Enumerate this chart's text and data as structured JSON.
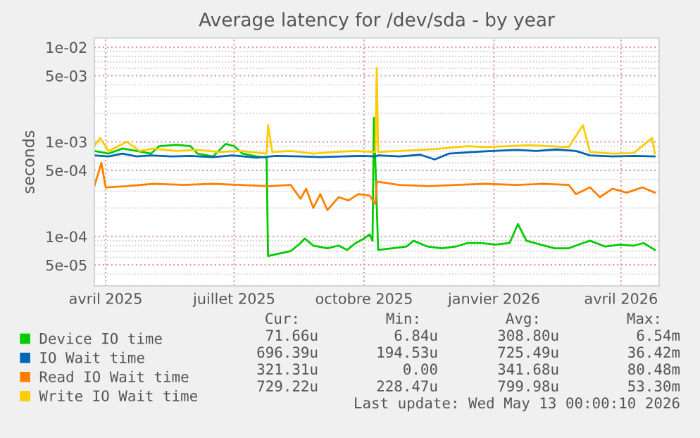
{
  "chart_data": {
    "type": "line",
    "title": "Average latency for /dev/sda - by year",
    "ylabel": "seconds",
    "log": "y",
    "xlim": [
      "2025-04-08",
      "2026-05-13"
    ],
    "xticks": [
      {
        "value": "2025-04-16",
        "label": "avril 2025"
      },
      {
        "value": "2025-07-16",
        "label": "juillet 2025"
      },
      {
        "value": "2025-10-16",
        "label": "octobre 2025"
      },
      {
        "value": "2026-01-16",
        "label": "janvier 2026"
      },
      {
        "value": "2026-04-16",
        "label": "avril 2026"
      }
    ],
    "ylim": [
      3e-05,
      0.0125
    ],
    "yticks": [
      {
        "value": 0.01,
        "label": "1e-02"
      },
      {
        "value": 0.005,
        "label": "5e-03"
      },
      {
        "value": 0.001,
        "label": "1e-03"
      },
      {
        "value": 0.0005,
        "label": "5e-04"
      },
      {
        "value": 0.0001,
        "label": "1e-04"
      },
      {
        "value": 5e-05,
        "label": "5e-05"
      }
    ],
    "grid": true,
    "legend": "bottom",
    "series": [
      {
        "name": "Device IO time",
        "color": "#00cc00",
        "x": [
          "2025-04-08",
          "2025-04-18",
          "2025-04-28",
          "2025-05-08",
          "2025-05-18",
          "2025-05-24",
          "2025-06-05",
          "2025-06-15",
          "2025-06-20",
          "2025-07-01",
          "2025-07-10",
          "2025-07-16",
          "2025-07-22",
          "2025-08-01",
          "2025-08-08",
          "2025-08-09",
          "2025-08-15",
          "2025-08-25",
          "2025-09-01",
          "2025-09-04",
          "2025-09-10",
          "2025-09-20",
          "2025-09-28",
          "2025-10-04",
          "2025-10-10",
          "2025-10-16",
          "2025-10-20",
          "2025-10-22",
          "2025-10-23",
          "2025-10-26",
          "2025-11-05",
          "2025-11-15",
          "2025-11-20",
          "2025-11-30",
          "2025-12-10",
          "2025-12-20",
          "2025-12-28",
          "2026-01-07",
          "2026-01-17",
          "2026-01-27",
          "2026-02-02",
          "2026-02-08",
          "2026-02-18",
          "2026-02-28",
          "2026-03-10",
          "2026-03-20",
          "2026-03-25",
          "2026-04-05",
          "2026-04-15",
          "2026-04-25",
          "2026-05-02",
          "2026-05-10"
        ],
        "values": [
          0.0008,
          0.00075,
          0.00085,
          0.0008,
          0.00075,
          0.0009,
          0.00093,
          0.0009,
          0.00075,
          0.0007,
          0.00095,
          0.0009,
          0.00075,
          0.0007,
          0.00068,
          6.2e-05,
          6.5e-05,
          7e-05,
          8.5e-05,
          9.5e-05,
          8e-05,
          7.5e-05,
          8e-05,
          7.2e-05,
          8.5e-05,
          9.5e-05,
          0.000105,
          9e-05,
          0.0018,
          7.2e-05,
          7.5e-05,
          7.8e-05,
          9e-05,
          7.8e-05,
          7.5e-05,
          7.8e-05,
          8.5e-05,
          8.5e-05,
          8.2e-05,
          8.5e-05,
          0.000135,
          9e-05,
          8.2e-05,
          7.5e-05,
          7.5e-05,
          8.5e-05,
          9e-05,
          7.8e-05,
          8.2e-05,
          8e-05,
          8.5e-05,
          7.2e-05
        ]
      },
      {
        "name": "IO Wait time",
        "color": "#0066b3",
        "x": [
          "2025-04-08",
          "2025-04-18",
          "2025-04-28",
          "2025-05-08",
          "2025-05-18",
          "2025-06-01",
          "2025-06-15",
          "2025-07-01",
          "2025-07-15",
          "2025-08-01",
          "2025-08-15",
          "2025-09-01",
          "2025-09-15",
          "2025-10-01",
          "2025-10-15",
          "2025-10-24",
          "2025-10-25",
          "2025-10-26",
          "2025-11-10",
          "2025-11-25",
          "2025-12-05",
          "2025-12-15",
          "2026-01-01",
          "2026-01-15",
          "2026-02-01",
          "2026-02-15",
          "2026-03-01",
          "2026-03-15",
          "2026-03-25",
          "2026-04-10",
          "2026-04-25",
          "2026-05-10"
        ],
        "values": [
          0.00072,
          0.0007,
          0.00075,
          0.0007,
          0.00072,
          0.0007,
          0.00071,
          0.00069,
          0.00072,
          0.00068,
          0.00071,
          0.0007,
          0.00069,
          0.0007,
          0.00071,
          0.0007,
          null,
          0.00072,
          0.0007,
          0.00073,
          0.00065,
          0.00075,
          0.00078,
          0.0008,
          0.00082,
          0.0008,
          0.00083,
          0.0008,
          0.00072,
          0.0007,
          0.00071,
          0.0007
        ]
      },
      {
        "name": "Read IO Wait time",
        "color": "#ff8000",
        "x": [
          "2025-04-08",
          "2025-04-13",
          "2025-04-16",
          "2025-05-01",
          "2025-05-20",
          "2025-06-10",
          "2025-07-01",
          "2025-07-20",
          "2025-08-10",
          "2025-08-25",
          "2025-09-01",
          "2025-09-05",
          "2025-09-10",
          "2025-09-15",
          "2025-09-20",
          "2025-09-28",
          "2025-10-05",
          "2025-10-12",
          "2025-10-20",
          "2025-10-24",
          "2025-10-25",
          "2025-11-10",
          "2025-12-01",
          "2025-12-20",
          "2026-01-10",
          "2026-02-01",
          "2026-02-20",
          "2026-03-10",
          "2026-03-15",
          "2026-03-25",
          "2026-04-01",
          "2026-04-10",
          "2026-04-20",
          "2026-05-01",
          "2026-05-10"
        ],
        "values": [
          0.00034,
          0.0006,
          0.00033,
          0.00034,
          0.00036,
          0.00035,
          0.00036,
          0.00035,
          0.00034,
          0.00035,
          0.00025,
          0.00032,
          0.0002,
          0.00028,
          0.00019,
          0.00026,
          0.00024,
          0.00028,
          0.00027,
          0.00022,
          0.00038,
          0.00035,
          0.00034,
          0.00035,
          0.00036,
          0.00035,
          0.00036,
          0.00035,
          0.00028,
          0.00033,
          0.00026,
          0.00032,
          0.00029,
          0.00033,
          0.00029
        ]
      },
      {
        "name": "Write IO Wait time",
        "color": "#ffcc00",
        "x": [
          "2025-04-08",
          "2025-04-12",
          "2025-04-18",
          "2025-05-01",
          "2025-05-10",
          "2025-05-20",
          "2025-06-05",
          "2025-06-20",
          "2025-07-05",
          "2025-07-20",
          "2025-08-08",
          "2025-08-09",
          "2025-08-12",
          "2025-08-25",
          "2025-09-10",
          "2025-09-25",
          "2025-10-10",
          "2025-10-24",
          "2025-10-25",
          "2025-10-26",
          "2025-11-10",
          "2025-11-25",
          "2025-12-10",
          "2025-12-28",
          "2026-01-10",
          "2026-01-25",
          "2026-02-10",
          "2026-02-25",
          "2026-03-10",
          "2026-03-20",
          "2026-03-25",
          "2026-04-10",
          "2026-04-25",
          "2026-05-08",
          "2026-05-10"
        ],
        "values": [
          0.0009,
          0.0011,
          0.0008,
          0.001,
          0.0008,
          0.00085,
          0.0008,
          0.00082,
          0.00078,
          0.0008,
          0.00075,
          0.0015,
          0.00078,
          0.0008,
          0.00075,
          0.00078,
          0.0008,
          0.00078,
          0.006,
          0.00078,
          0.0008,
          0.00082,
          0.00085,
          0.0009,
          0.00088,
          0.0009,
          0.00092,
          0.0009,
          0.00088,
          0.0015,
          0.00078,
          0.00075,
          0.00076,
          0.0011,
          0.00075
        ]
      }
    ],
    "annotations": [
      "Cur:",
      "Min:",
      "Avg:",
      "Max:",
      "71.66u",
      "6.84u",
      "308.80u",
      "6.54m",
      "696.39u",
      "194.53u",
      "725.49u",
      "36.42m",
      "321.31u",
      "0.00",
      "341.68u",
      "80.48m",
      "729.22u",
      "228.47u",
      "799.98u",
      "53.30m",
      "Last update: Wed May 13 00:00:10 2026"
    ]
  }
}
